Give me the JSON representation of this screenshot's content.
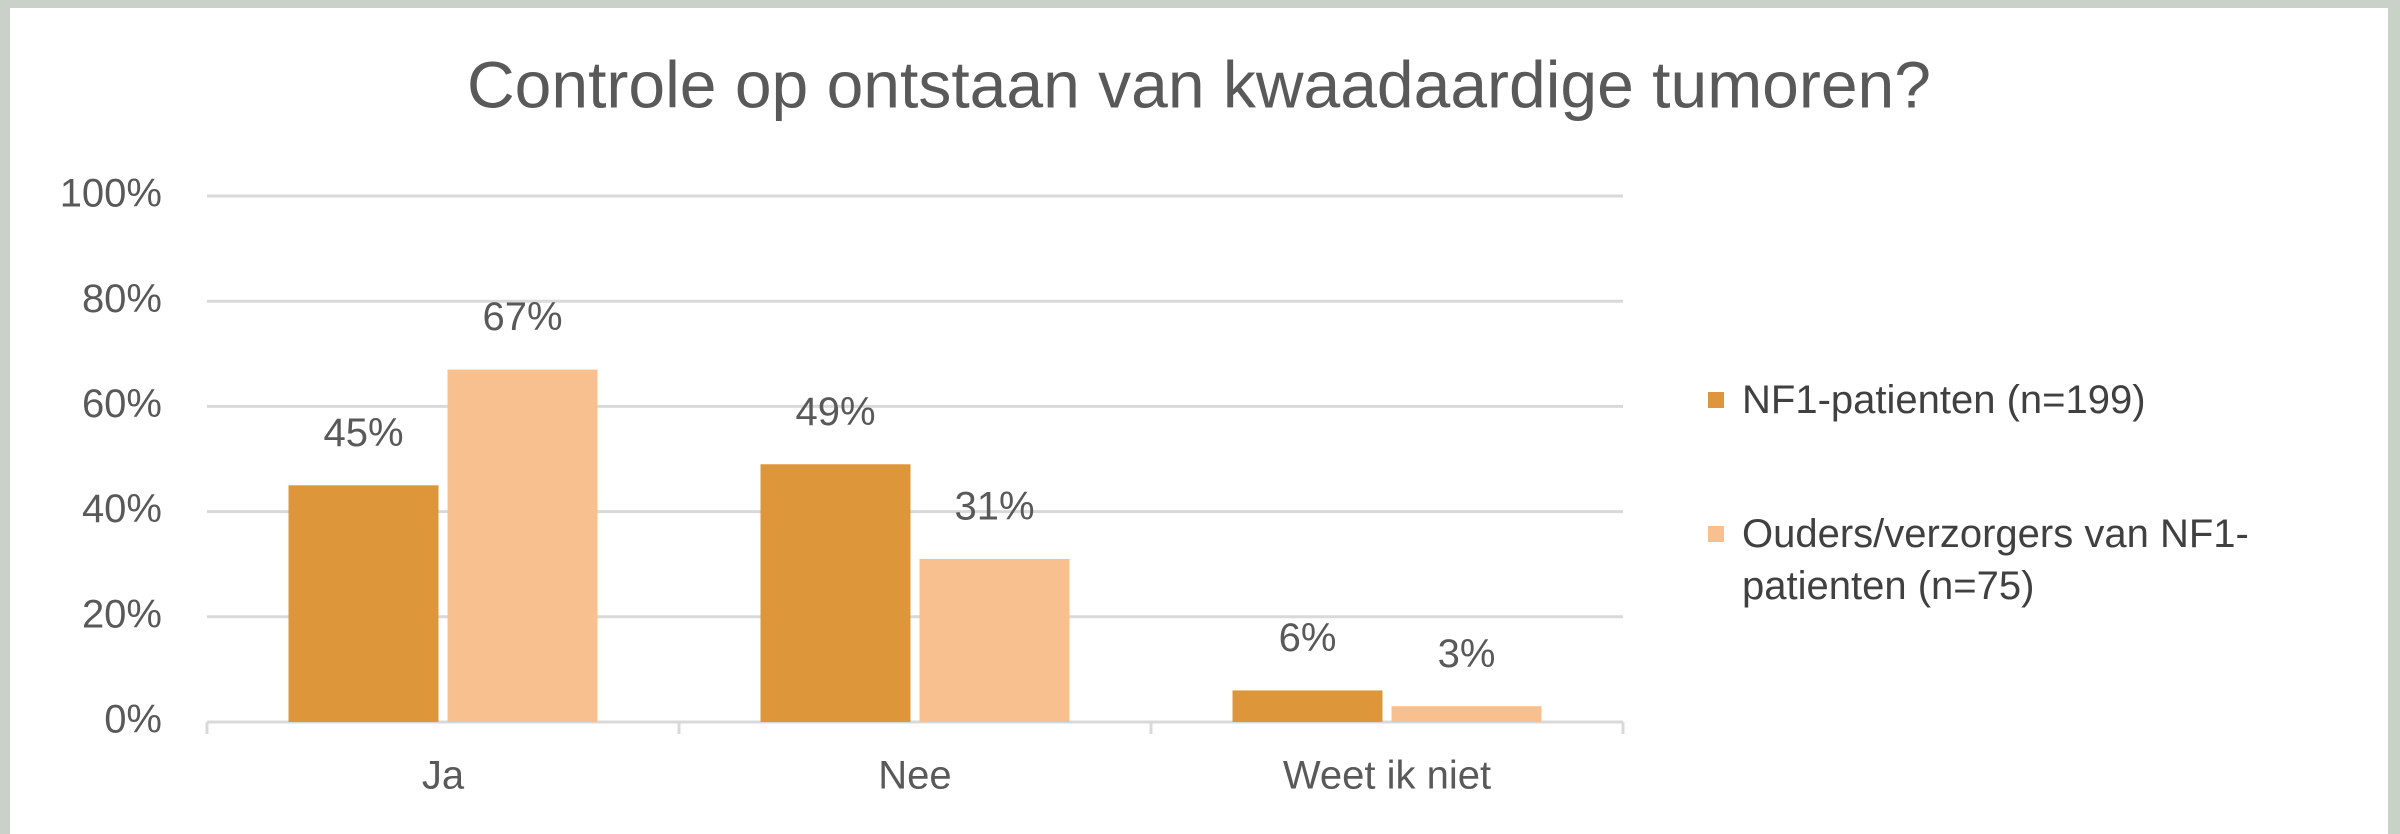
{
  "chart_data": {
    "type": "bar",
    "title": "Controle op ontstaan van kwaadaardige tumoren?",
    "categories": [
      "Ja",
      "Nee",
      "Weet ik niet"
    ],
    "series": [
      {
        "name": "NF1-patienten (n=199)",
        "color": "#dd963a",
        "values": [
          45,
          49,
          6
        ],
        "value_labels": [
          "45%",
          "49%",
          "6%"
        ]
      },
      {
        "name": "Ouders/verzorgers van NF1-patienten (n=75)",
        "color": "#f9c08f",
        "values": [
          67,
          31,
          3
        ],
        "value_labels": [
          "67%",
          "31%",
          "3%"
        ]
      }
    ],
    "ylim": [
      0,
      100
    ],
    "yticks": [
      {
        "value": 0,
        "label": "0%"
      },
      {
        "value": 20,
        "label": "20%"
      },
      {
        "value": 40,
        "label": "40%"
      },
      {
        "value": 60,
        "label": "60%"
      },
      {
        "value": 80,
        "label": "80%"
      },
      {
        "value": 100,
        "label": "100%"
      }
    ],
    "grid": true,
    "legend": "right"
  }
}
